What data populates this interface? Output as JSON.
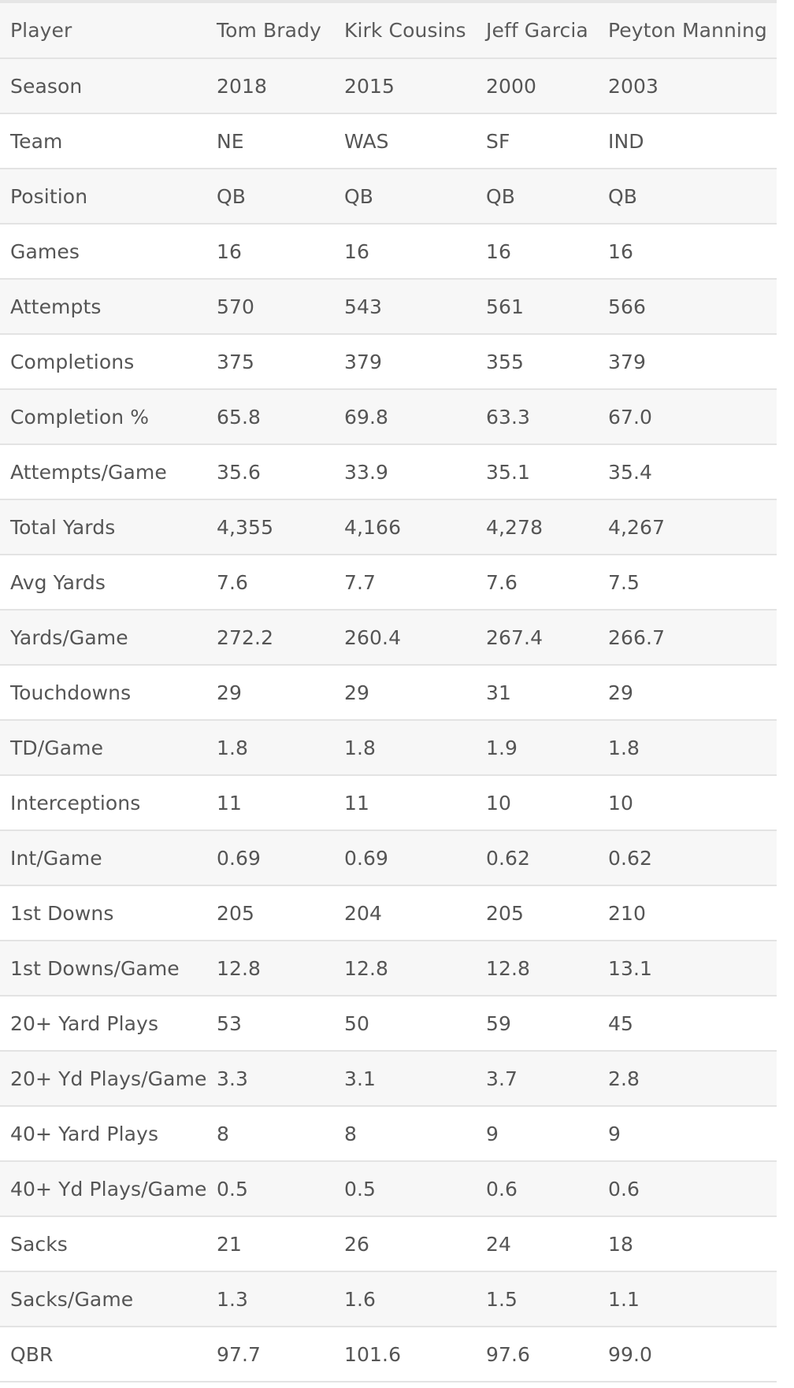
{
  "table": {
    "header": {
      "label": "Player",
      "columns": [
        "Tom Brady",
        "Kirk Cousins",
        "Jeff Garcia",
        "Peyton Manning"
      ]
    },
    "rows": [
      {
        "label": "Season",
        "values": [
          "2018",
          "2015",
          "2000",
          "2003"
        ]
      },
      {
        "label": "Team",
        "values": [
          "NE",
          "WAS",
          "SF",
          "IND"
        ]
      },
      {
        "label": "Position",
        "values": [
          "QB",
          "QB",
          "QB",
          "QB"
        ]
      },
      {
        "label": "Games",
        "values": [
          "16",
          "16",
          "16",
          "16"
        ]
      },
      {
        "label": "Attempts",
        "values": [
          "570",
          "543",
          "561",
          "566"
        ]
      },
      {
        "label": "Completions",
        "values": [
          "375",
          "379",
          "355",
          "379"
        ]
      },
      {
        "label": "Completion %",
        "values": [
          "65.8",
          "69.8",
          "63.3",
          "67.0"
        ]
      },
      {
        "label": "Attempts/Game",
        "values": [
          "35.6",
          "33.9",
          "35.1",
          "35.4"
        ]
      },
      {
        "label": "Total Yards",
        "values": [
          "4,355",
          "4,166",
          "4,278",
          "4,267"
        ]
      },
      {
        "label": "Avg Yards",
        "values": [
          "7.6",
          "7.7",
          "7.6",
          "7.5"
        ]
      },
      {
        "label": "Yards/Game",
        "values": [
          "272.2",
          "260.4",
          "267.4",
          "266.7"
        ]
      },
      {
        "label": "Touchdowns",
        "values": [
          "29",
          "29",
          "31",
          "29"
        ]
      },
      {
        "label": "TD/Game",
        "values": [
          "1.8",
          "1.8",
          "1.9",
          "1.8"
        ]
      },
      {
        "label": "Interceptions",
        "values": [
          "11",
          "11",
          "10",
          "10"
        ]
      },
      {
        "label": "Int/Game",
        "values": [
          "0.69",
          "0.69",
          "0.62",
          "0.62"
        ]
      },
      {
        "label": "1st Downs",
        "values": [
          "205",
          "204",
          "205",
          "210"
        ]
      },
      {
        "label": "1st Downs/Game",
        "values": [
          "12.8",
          "12.8",
          "12.8",
          "13.1"
        ]
      },
      {
        "label": "20+ Yard Plays",
        "values": [
          "53",
          "50",
          "59",
          "45"
        ]
      },
      {
        "label": "20+ Yd Plays/Game",
        "values": [
          "3.3",
          "3.1",
          "3.7",
          "2.8"
        ]
      },
      {
        "label": "40+ Yard Plays",
        "values": [
          "8",
          "8",
          "9",
          "9"
        ]
      },
      {
        "label": "40+ Yd Plays/Game",
        "values": [
          "0.5",
          "0.5",
          "0.6",
          "0.6"
        ]
      },
      {
        "label": "Sacks",
        "values": [
          "21",
          "26",
          "24",
          "18"
        ]
      },
      {
        "label": "Sacks/Game",
        "values": [
          "1.3",
          "1.6",
          "1.5",
          "1.1"
        ]
      },
      {
        "label": "QBR",
        "values": [
          "97.7",
          "101.6",
          "97.6",
          "99.0"
        ]
      }
    ]
  },
  "colors": {
    "stripe": "#f7f7f7",
    "border": "#e3e3e3",
    "text": "#555555"
  }
}
